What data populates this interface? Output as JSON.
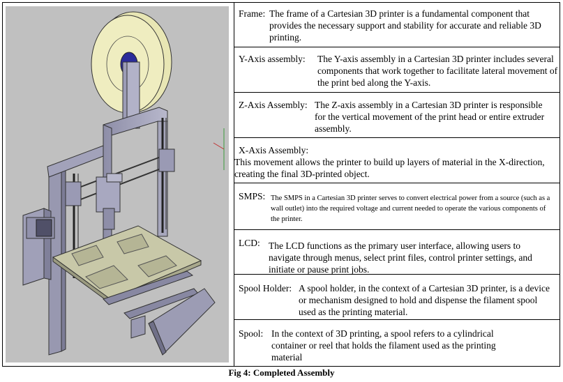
{
  "caption": "Fig 4: Completed Assembly",
  "components": [
    {
      "term": "Frame:",
      "description": "The frame of a Cartesian 3D printer is a fundamental component that provides the necessary support and stability for accurate and reliable 3D printing."
    },
    {
      "term": "Y-Axis assembly:",
      "description": "The Y-axis assembly in a Cartesian 3D printer includes several components that work together to facilitate lateral movement of the print bed along the Y-axis."
    },
    {
      "term": "Z-Axis Assembly:",
      "description": "The Z-axis assembly in a Cartesian 3D printer is responsible for the vertical movement of the print head or entire extruder assembly."
    },
    {
      "term": "X-Axis Assembly:",
      "description": "This movement allows the printer to build up layers of material in the X-direction, creating the final 3D-printed object."
    },
    {
      "term": "SMPS:",
      "description": "The SMPS in a Cartesian 3D printer serves to convert electrical power from a source (such as a wall outlet) into the required voltage and current needed to operate the various components of the printer."
    },
    {
      "term": "LCD:",
      "description": "The LCD functions as the primary user interface, allowing users to navigate through menus, select print files, control printer settings, and initiate or pause print jobs."
    },
    {
      "term": "Spool Holder:",
      "description": "A spool holder, in the context of a Cartesian 3D printer, is a device or mechanism designed to hold and dispense the filament spool used as the printing material."
    },
    {
      "term": "Spool:",
      "description": "In the context of 3D printing, a spool refers to a cylindrical container or reel that holds the filament used as the printing material"
    }
  ]
}
